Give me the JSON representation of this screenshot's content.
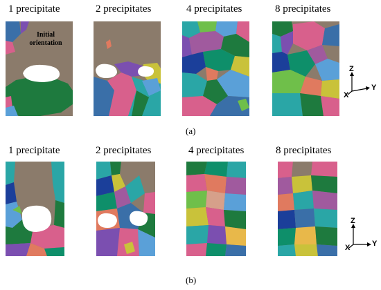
{
  "row_a": {
    "labels": [
      "1 precipitate",
      "2 precipitates",
      "4 precipitates",
      "8 precipitates"
    ],
    "caption": "(a)",
    "annotation": "Initial orientation"
  },
  "row_b": {
    "labels": [
      "1 precipitate",
      "2 precipitates",
      "4 precipitates",
      "8 precipitates"
    ],
    "caption": "(b)"
  },
  "axes": {
    "z": "Z",
    "y": "Y",
    "x": "X"
  },
  "palette": {
    "background_grain": "#8b7b6b",
    "precipitate": "#ffffff",
    "grain_colors": [
      "#1e7a3e",
      "#d8608c",
      "#3a6fa8",
      "#7b4fb0",
      "#2aa6a6",
      "#c9c23a",
      "#6fbf4a",
      "#e07a5f",
      "#5aa0d8",
      "#a05a9e",
      "#0e8f6a",
      "#d6a08a",
      "#1b3f9a",
      "#e8b84a"
    ]
  }
}
